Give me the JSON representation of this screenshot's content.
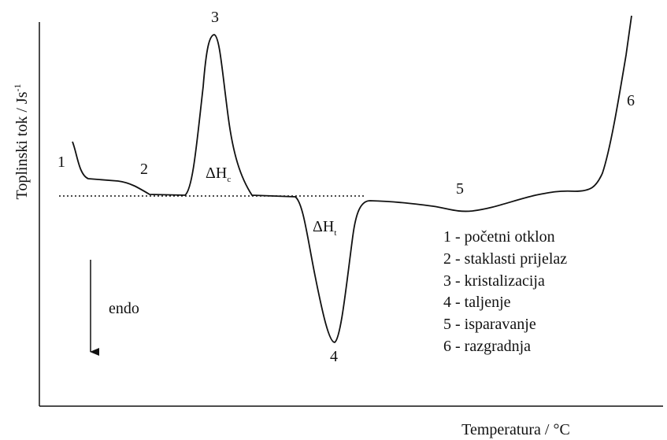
{
  "y_axis_label": {
    "text": "Toplinski tok / Js",
    "superscript": "-1"
  },
  "x_axis_label": "Temperatura / °C",
  "direction_label": "endo",
  "point_labels": [
    "1",
    "2",
    "3",
    "4",
    "5",
    "6"
  ],
  "enthalpy_labels": [
    {
      "symbol": "ΔH",
      "subscript": "c"
    },
    {
      "symbol": "ΔH",
      "subscript": "t"
    }
  ],
  "legend": [
    "1 - početni otklon",
    "2 - staklasti prijelaz",
    "3 - kristalizacija",
    "4 - taljenje",
    "5 - isparavanje",
    "6 - razgradnja"
  ]
}
